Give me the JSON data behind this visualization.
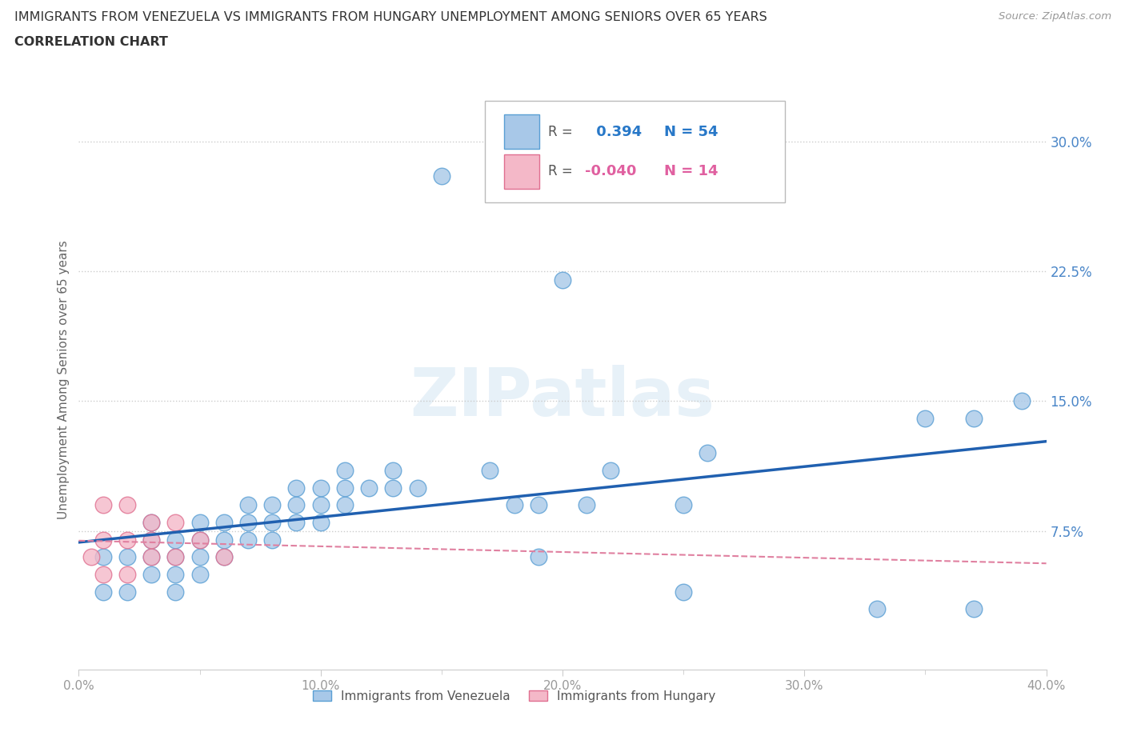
{
  "title_line1": "IMMIGRANTS FROM VENEZUELA VS IMMIGRANTS FROM HUNGARY UNEMPLOYMENT AMONG SENIORS OVER 65 YEARS",
  "title_line2": "CORRELATION CHART",
  "source_text": "Source: ZipAtlas.com",
  "ylabel": "Unemployment Among Seniors over 65 years",
  "xlim": [
    0.0,
    0.4
  ],
  "ylim": [
    -0.005,
    0.33
  ],
  "xtick_labels": [
    "0.0%",
    "",
    "",
    "",
    "",
    "10.0%",
    "",
    "",
    "",
    "",
    "20.0%",
    "",
    "",
    "",
    "",
    "30.0%",
    "",
    "",
    "",
    "",
    "40.0%"
  ],
  "xtick_vals": [
    0.0,
    0.02,
    0.04,
    0.06,
    0.08,
    0.1,
    0.12,
    0.14,
    0.16,
    0.18,
    0.2,
    0.22,
    0.24,
    0.26,
    0.28,
    0.3,
    0.32,
    0.34,
    0.36,
    0.38,
    0.4
  ],
  "xtick_major_labels": [
    "0.0%",
    "10.0%",
    "20.0%",
    "30.0%",
    "40.0%"
  ],
  "xtick_major_vals": [
    0.0,
    0.1,
    0.2,
    0.3,
    0.4
  ],
  "ytick_labels": [
    "7.5%",
    "15.0%",
    "22.5%",
    "30.0%"
  ],
  "ytick_vals": [
    0.075,
    0.15,
    0.225,
    0.3
  ],
  "watermark": "ZIPatlas",
  "venezuela_color": "#a8c8e8",
  "hungary_color": "#f4b8c8",
  "venezuela_edge": "#5a9fd4",
  "hungary_edge": "#e07090",
  "venezuela_R": 0.394,
  "venezuela_N": 54,
  "hungary_R": -0.04,
  "hungary_N": 14,
  "venezuela_line_color": "#2060b0",
  "hungary_line_color": "#e080a0",
  "venezuela_scatter_x": [
    0.01,
    0.01,
    0.02,
    0.02,
    0.03,
    0.03,
    0.03,
    0.03,
    0.04,
    0.04,
    0.04,
    0.04,
    0.05,
    0.05,
    0.05,
    0.05,
    0.06,
    0.06,
    0.06,
    0.07,
    0.07,
    0.07,
    0.08,
    0.08,
    0.08,
    0.09,
    0.09,
    0.09,
    0.1,
    0.1,
    0.1,
    0.11,
    0.11,
    0.11,
    0.12,
    0.13,
    0.13,
    0.14,
    0.15,
    0.17,
    0.18,
    0.19,
    0.19,
    0.2,
    0.21,
    0.22,
    0.25,
    0.25,
    0.26,
    0.33,
    0.35,
    0.37,
    0.37,
    0.39
  ],
  "venezuela_scatter_y": [
    0.04,
    0.06,
    0.04,
    0.06,
    0.05,
    0.06,
    0.07,
    0.08,
    0.04,
    0.05,
    0.06,
    0.07,
    0.05,
    0.06,
    0.07,
    0.08,
    0.06,
    0.07,
    0.08,
    0.07,
    0.08,
    0.09,
    0.07,
    0.08,
    0.09,
    0.08,
    0.09,
    0.1,
    0.08,
    0.09,
    0.1,
    0.09,
    0.1,
    0.11,
    0.1,
    0.1,
    0.11,
    0.1,
    0.28,
    0.11,
    0.09,
    0.06,
    0.09,
    0.22,
    0.09,
    0.11,
    0.04,
    0.09,
    0.12,
    0.03,
    0.14,
    0.03,
    0.14,
    0.15
  ],
  "hungary_scatter_x": [
    0.005,
    0.01,
    0.01,
    0.01,
    0.02,
    0.02,
    0.02,
    0.03,
    0.03,
    0.03,
    0.04,
    0.04,
    0.05,
    0.06
  ],
  "hungary_scatter_y": [
    0.06,
    0.05,
    0.07,
    0.09,
    0.05,
    0.07,
    0.09,
    0.06,
    0.07,
    0.08,
    0.06,
    0.08,
    0.07,
    0.06
  ],
  "background_color": "#ffffff",
  "grid_color": "#cccccc",
  "title_color": "#333333",
  "axis_label_color": "#666666",
  "tick_color": "#999999",
  "right_tick_color": "#4a86c8"
}
